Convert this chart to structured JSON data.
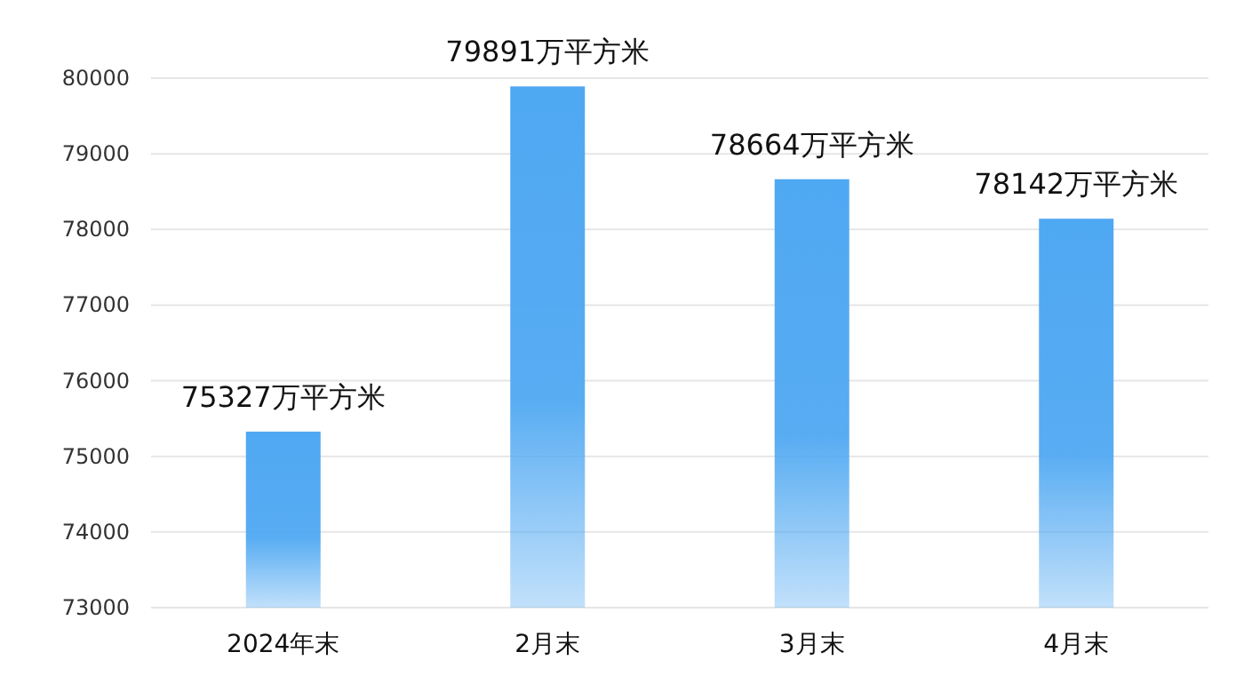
{
  "chart_data": {
    "type": "bar",
    "categories": [
      "2024年末",
      "2月末",
      "3月末",
      "4月末"
    ],
    "series": [
      {
        "color": "#4fa8f2",
        "values": [
          75327,
          79891,
          78664,
          78142
        ],
        "value_labels": [
          "75327万平方米",
          "79891万平方米",
          "78664万平方米",
          "78142万平方米"
        ]
      }
    ],
    "ylim": [
      73000,
      80000
    ],
    "yticks": [
      73000,
      74000,
      75000,
      76000,
      77000,
      78000,
      79000,
      80000
    ],
    "grid": "y"
  }
}
